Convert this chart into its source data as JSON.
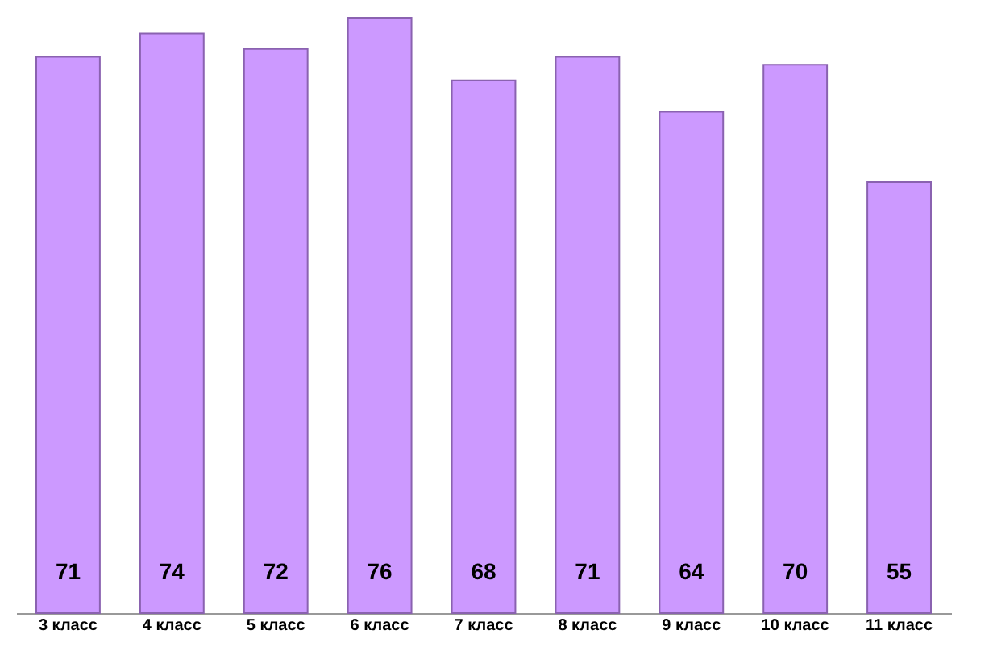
{
  "chart_data": {
    "type": "bar",
    "categories": [
      "3 класс",
      "4 класс",
      "5 класс",
      "6 класс",
      "7 класс",
      "8 класс",
      "9 класс",
      "10 класс",
      "11 класс"
    ],
    "values": [
      71,
      74,
      72,
      76,
      68,
      71,
      64,
      70,
      55
    ],
    "color": "#cc99ff",
    "data_labels": true
  }
}
